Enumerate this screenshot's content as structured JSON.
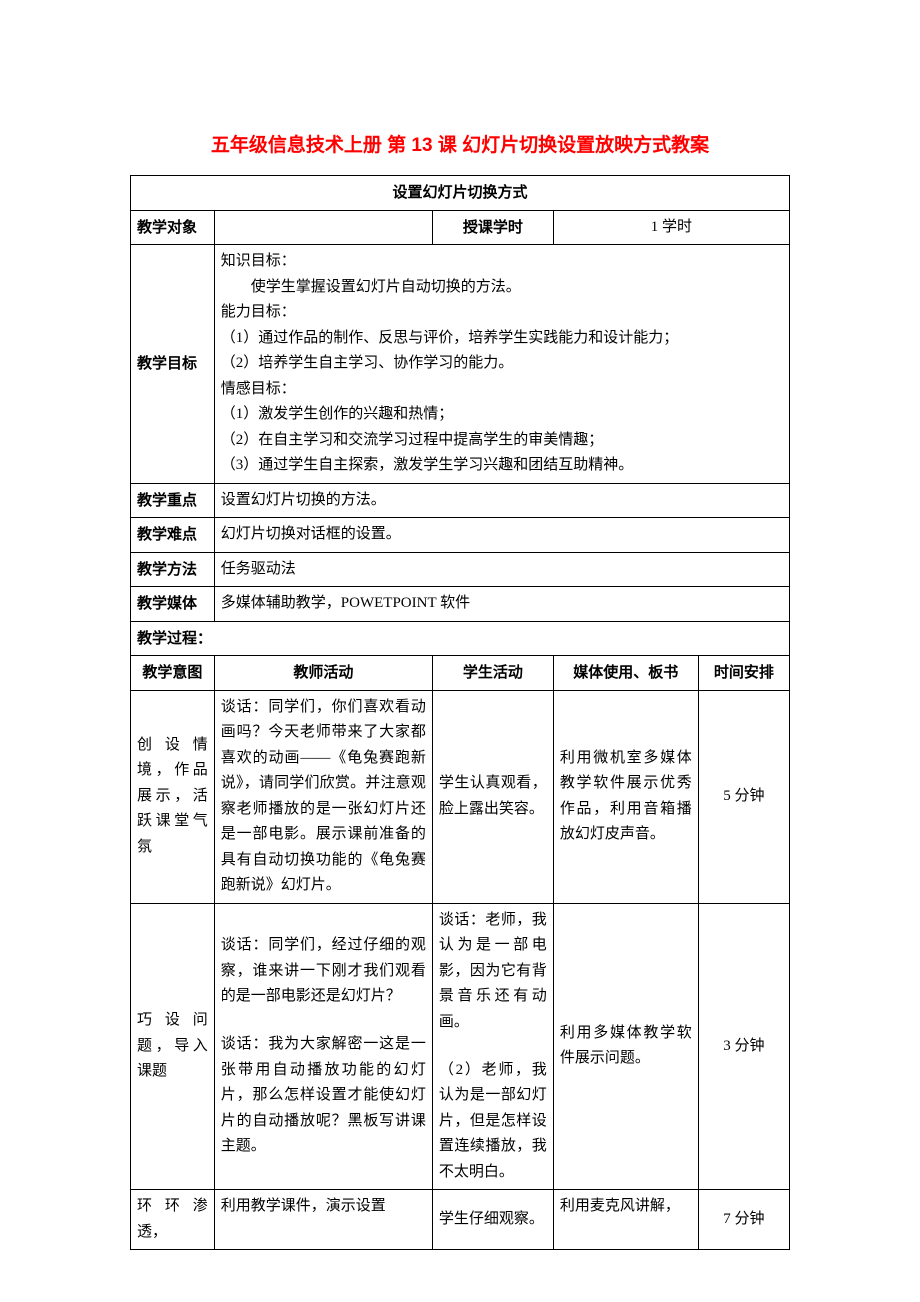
{
  "title": "五年级信息技术上册 第 13 课 幻灯片切换设置放映方式教案",
  "header_row": "设置幻灯片切换方式",
  "labels": {
    "subject": "教学对象",
    "hours_label": "授课学时",
    "hours_value": "1 学时",
    "goals": "教学目标",
    "keypoint": "教学重点",
    "difficulty": "教学难点",
    "method": "教学方法",
    "media": "教学媒体",
    "process": "教学过程：",
    "intent": "教学意图",
    "teacher": "教师活动",
    "student": "学生活动",
    "media_board": "媒体使用、板书",
    "time": "时间安排"
  },
  "goals": {
    "k_label": "知识目标：",
    "k_1": "使学生掌握设置幻灯片自动切换的方法。",
    "a_label": "能力目标：",
    "a_1": "（1）通过作品的制作、反思与评价，培养学生实践能力和设计能力；",
    "a_2": "（2）培养学生自主学习、协作学习的能力。",
    "e_label": "情感目标：",
    "e_1": "（1）激发学生创作的兴趣和热情；",
    "e_2": "（2）在自主学习和交流学习过程中提高学生的审美情趣；",
    "e_3": "（3）通过学生自主探索，激发学生学习兴趣和团结互助精神。"
  },
  "keypoint_text": "设置幻灯片切换的方法。",
  "difficulty_text": "幻灯片切换对话框的设置。",
  "method_text": "任务驱动法",
  "media_text": "多媒体辅助教学，POWETPOINT 软件",
  "rows": [
    {
      "intent": "创设情境，作品展示，活跃课堂气氛",
      "teacher": "谈话：同学们，你们喜欢看动画吗？今天老师带来了大家都喜欢的动画——《龟兔赛跑新说》，请同学们欣赏。并注意观察老师播放的是一张幻灯片还是一部电影。展示课前准备的具有自动切换功能的《龟兔赛跑新说》幻灯片。",
      "student": "学生认真观看，脸上露出笑容。",
      "media": "利用微机室多媒体教学软件展示优秀作品，利用音箱播放幻灯皮声音。",
      "time": "5 分钟"
    },
    {
      "intent": "巧设问题，导入课题",
      "teacher_p1": "谈话：同学们，经过仔细的观察，谁来讲一下刚才我们观看的是一部电影还是幻灯片？",
      "teacher_p2": "谈话：我为大家解密一这是一张带用自动播放功能的幻灯片，那么怎样设置才能使幻灯片的自动播放呢？黑板写讲课主题。",
      "student_p1": "谈话：老师，我认为是一部电影，因为它有背景音乐还有动画。",
      "student_p2": "（2）老师，我认为是一部幻灯片，但是怎样设置连续播放，我不太明白。",
      "media": "利用多媒体教学软件展示问题。",
      "time": "3 分钟"
    },
    {
      "intent": "环环渗透，",
      "teacher": "利用教学课件，演示设置",
      "student": "学生仔细观察。",
      "media": "利用麦克风讲解，",
      "time": "7 分钟"
    }
  ]
}
